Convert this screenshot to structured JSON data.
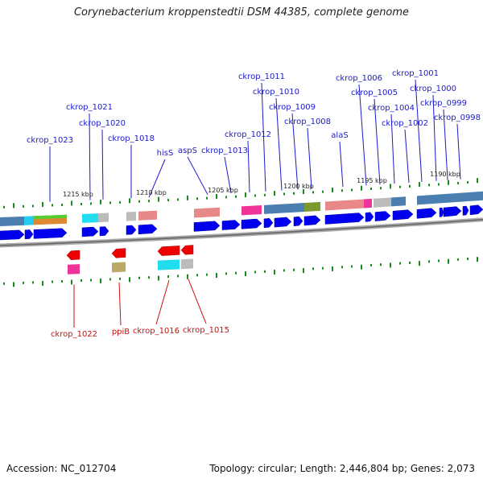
{
  "title": "Corynebacterium kroppenstedtii DSM 44385, complete genome",
  "footer": {
    "accession": "Accession: NC_012704",
    "summary": "Topology: circular; Length: 2,446,804 bp; Genes: 2,073"
  },
  "colors": {
    "forward_label": "#1a1acc",
    "reverse_label": "#cc1111",
    "forward_cds": "#0000ee",
    "reverse_cds": "#ee0000",
    "tick": "#1a8c1a",
    "backbone": "#888888"
  },
  "scale_labels": [
    "1215 kbp",
    "1210 kbp",
    "1205 kbp",
    "1200 kbp",
    "1195 kbp",
    "1190 kbp"
  ],
  "forward_genes": [
    "ckrop_1023",
    "ckrop_1021",
    "ckrop_1020",
    "ckrop_1018",
    "hisS",
    "aspS",
    "ckrop_1013",
    "ckrop_1012",
    "ckrop_1011",
    "ckrop_1010",
    "ckrop_1009",
    "ckrop_1008",
    "alaS",
    "ckrop_1006",
    "ckrop_1005",
    "ckrop_1004",
    "ckrop_1002",
    "ckrop_1001",
    "ckrop_1000",
    "ckrop_0999",
    "ckrop_0998"
  ],
  "reverse_genes": [
    "ckrop_1022",
    "ppiB",
    "ckrop_1016",
    "ckrop_1015"
  ]
}
